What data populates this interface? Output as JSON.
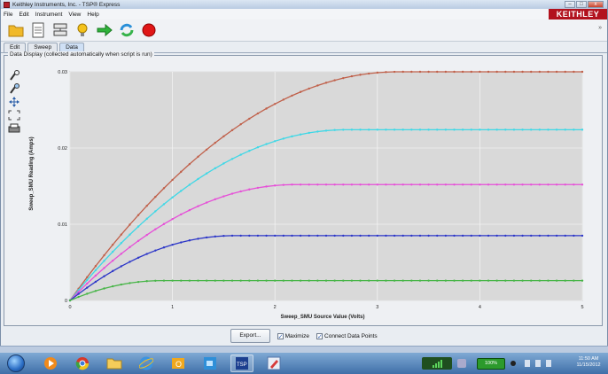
{
  "window": {
    "title": "Keithley Instruments, Inc. - TSP® Express",
    "brand": "KEITHLEY",
    "controls": [
      "–",
      "□",
      "x"
    ]
  },
  "menu": [
    "File",
    "Edit",
    "Instrument",
    "View",
    "Help"
  ],
  "toolbar": {
    "icons": [
      "folder-icon",
      "page-icon",
      "network-icon",
      "lightbulb-icon",
      "run-arrow-icon",
      "refresh-icon",
      "stop-icon"
    ]
  },
  "tabs": [
    {
      "label": "Edit",
      "active": false
    },
    {
      "label": "Sweep",
      "active": false
    },
    {
      "label": "Data",
      "active": true
    }
  ],
  "panel": {
    "legend": "Data Display (collected automatically when script is run)"
  },
  "side_tools": [
    "zoom-in-icon",
    "zoom-out-icon",
    "pan-icon",
    "fit-icon",
    "print-icon"
  ],
  "chart_data": {
    "type": "line",
    "title": "",
    "xlabel": "Sweep_SMU Source Value (Volts)",
    "ylabel": "Sweep_SMU Reading (Amps)",
    "xlim": [
      0,
      5
    ],
    "ylim": [
      0,
      0.03
    ],
    "x_ticks": [
      0,
      1,
      2,
      3,
      4,
      5
    ],
    "y_ticks": [
      {
        "v": 0,
        "label": "0"
      },
      {
        "v": 0.01,
        "label": "0.01"
      },
      {
        "v": 0.02,
        "label": "0.02"
      },
      {
        "v": 0.03,
        "label": "0.03"
      }
    ],
    "grid": true,
    "background": "#d9d9d9",
    "series": [
      {
        "color": "#c0604a",
        "vsat": 3.2,
        "isat": 0.03
      },
      {
        "color": "#3ed8e6",
        "vsat": 2.7,
        "isat": 0.0224
      },
      {
        "color": "#e64fd8",
        "vsat": 2.2,
        "isat": 0.0152
      },
      {
        "color": "#2c36c8",
        "vsat": 1.6,
        "isat": 0.0085
      },
      {
        "color": "#48b548",
        "vsat": 0.9,
        "isat": 0.0026
      }
    ],
    "points_per_series": 61
  },
  "bottom": {
    "export_label": "Export...",
    "maximize_label": "Maximize",
    "maximize_checked": true,
    "connect_label": "Connect Data Points",
    "connect_checked": true
  },
  "taskbar": {
    "apps": [
      "media-player-icon",
      "chrome-icon",
      "folder-icon",
      "ie-icon",
      "outlook-icon",
      "lync-icon",
      "tsp-icon",
      "paint-icon"
    ],
    "clock_time": "11:50 AM",
    "clock_date": "11/15/2012",
    "battery": "100%"
  }
}
